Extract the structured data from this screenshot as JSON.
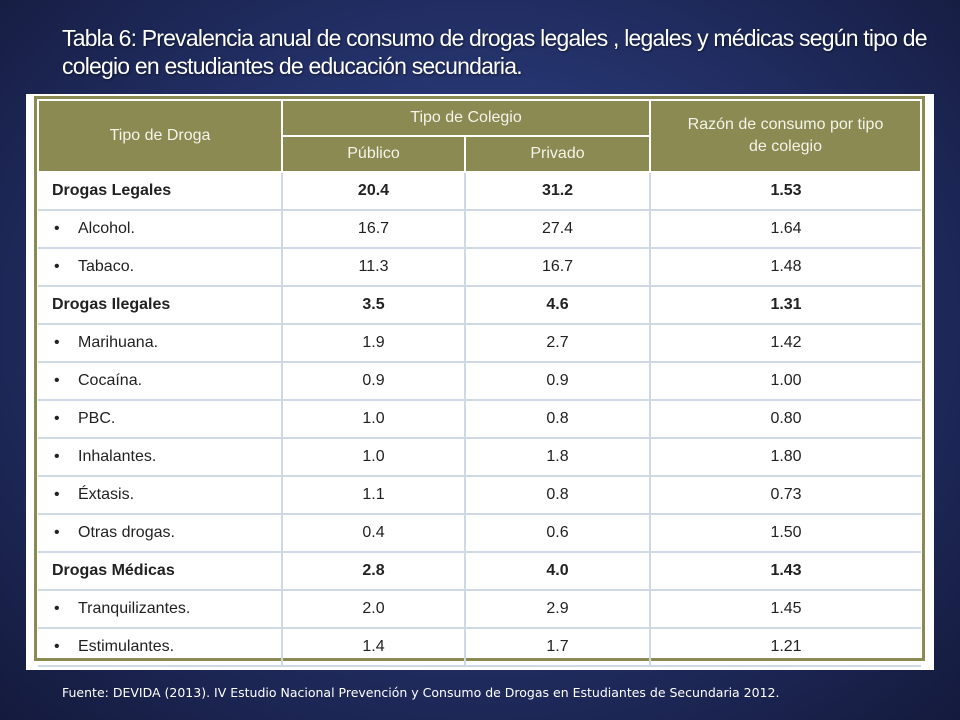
{
  "title": "Tabla 6: Prevalencia anual  de consumo de drogas legales , legales  y médicas  según tipo de colegio en estudiantes de educación secundaria.",
  "table": {
    "header_drug": "Tipo de Droga",
    "header_school": "Tipo de Colegio",
    "header_public": "Público",
    "header_private": "Privado",
    "header_ratio": "Razón de consumo por tipo de colegio",
    "bullet": "•",
    "rows": [
      {
        "label": "Drogas Legales",
        "public": "20.4",
        "private": "31.2",
        "ratio": "1.53"
      },
      {
        "label": "Alcohol.",
        "public": "16.7",
        "private": "27.4",
        "ratio": "1.64"
      },
      {
        "label": "Tabaco.",
        "public": "11.3",
        "private": "16.7",
        "ratio": "1.48"
      },
      {
        "label": "Drogas Ilegales",
        "public": "3.5",
        "private": "4.6",
        "ratio": "1.31"
      },
      {
        "label": "Marihuana.",
        "public": "1.9",
        "private": "2.7",
        "ratio": "1.42"
      },
      {
        "label": "Cocaína.",
        "public": "0.9",
        "private": "0.9",
        "ratio": "1.00"
      },
      {
        "label": "PBC.",
        "public": "1.0",
        "private": "0.8",
        "ratio": "0.80"
      },
      {
        "label": "Inhalantes.",
        "public": "1.0",
        "private": "1.8",
        "ratio": "1.80"
      },
      {
        "label": "Éxtasis.",
        "public": "1.1",
        "private": "0.8",
        "ratio": "0.73"
      },
      {
        "label": "Otras drogas.",
        "public": "0.4",
        "private": "0.6",
        "ratio": "1.50"
      },
      {
        "label": "Drogas Médicas",
        "public": "2.8",
        "private": "4.0",
        "ratio": "1.43"
      },
      {
        "label": "Tranquilizantes.",
        "public": "2.0",
        "private": "2.9",
        "ratio": "1.45"
      },
      {
        "label": "Estimulantes.",
        "public": "1.4",
        "private": "1.7",
        "ratio": "1.21"
      }
    ]
  },
  "footer": "Fuente: DEVIDA (2013). IV Estudio Nacional Prevención y Consumo de Drogas en Estudiantes de Secundaria 2012."
}
